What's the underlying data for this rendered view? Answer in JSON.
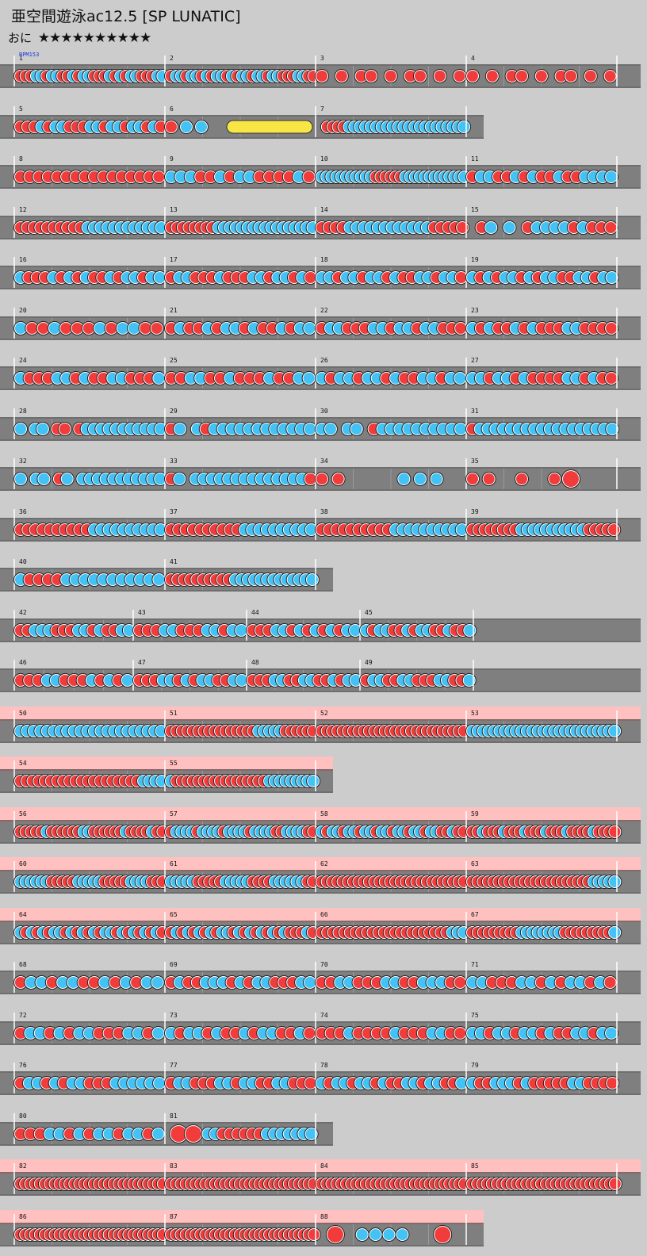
{
  "title": "亜空間遊泳ac12.5 [SP LUNATIC]",
  "difficulty_label": "おに",
  "stars": "★★★★★★★★★★",
  "bpm_label": "BPM153",
  "colors": {
    "background": "#cccccc",
    "lane": "#7f7f7f",
    "gogo_band": "#ffc0c0",
    "don": "#f23c3c",
    "ka": "#42c2f5",
    "drumroll": "#f8e645"
  },
  "rows": [
    {
      "gogo": false,
      "measures": [
        {
          "num": "1",
          "pattern": "dddkkdkkddkdkkdddkdkdkkdddkk"
        },
        {
          "num": "2",
          "pattern": "dkkdkkdkdkkdkdkkdkkdkkdddkkdd"
        },
        {
          "num": "3",
          "pattern": "d-d-dd-d-dd-d-d"
        },
        {
          "num": "4",
          "pattern": "d-d-dd-d-dd-d-d"
        }
      ]
    },
    {
      "gogo": false,
      "measures": [
        {
          "num": "5",
          "pattern": "dddkdkkdddkkdkkdkkdkd"
        },
        {
          "num": "6",
          "pattern": "dkk-ROLL"
        },
        {
          "num": "7",
          "pattern": "-ddddkkkkkkkkkkkkkkkkkkkkkk"
        }
      ]
    },
    {
      "gogo": false,
      "measures": [
        {
          "num": "8",
          "pattern": "dddddddddddddddd"
        },
        {
          "num": "9",
          "pattern": "kkkddkdkkddddkd"
        },
        {
          "num": "10",
          "pattern": "kkkkkkkkkkkddddddkkkkkkkkkkkkk"
        },
        {
          "num": "11",
          "pattern": "dkkddkdkddkddkkkk"
        }
      ]
    },
    {
      "gogo": false,
      "measures": [
        {
          "num": "12",
          "pattern": "ddddddddddkkkkkkkkkkkk"
        },
        {
          "num": "13",
          "pattern": "ddddddddkkkkkkkkkkkkkkkkk"
        },
        {
          "num": "14",
          "pattern": "ddddkkkkkkkkkkkkddddd"
        },
        {
          "num": "15",
          "pattern": "-dk-k-dkkkkdkddd"
        }
      ]
    },
    {
      "gogo": false,
      "measures": [
        {
          "num": "16",
          "pattern": "kdddkdkdkddkdkkdkk"
        },
        {
          "num": "17",
          "pattern": "dkkdddkdddkkdkkdkd"
        },
        {
          "num": "18",
          "pattern": "kkdkkdkkdkddkkdkkd"
        },
        {
          "num": "19",
          "pattern": "kdkdkkdkdkkddkkdkk"
        }
      ]
    },
    {
      "gogo": false,
      "measures": [
        {
          "num": "20",
          "pattern": "kddkdddkdkkdd"
        },
        {
          "num": "21",
          "pattern": "dkddkdkkdkddkdkk"
        },
        {
          "num": "22",
          "pattern": "dkkdddkkdkkdkkddd"
        },
        {
          "num": "23",
          "pattern": "kdkddkdkdddkkdddd"
        }
      ]
    },
    {
      "gogo": false,
      "measures": [
        {
          "num": "24",
          "pattern": "kdddkkdkddkkdddk"
        },
        {
          "num": "25",
          "pattern": "ddkkddkdddkddkk"
        },
        {
          "num": "26",
          "pattern": "kdkkdkkdkddkkdkk"
        },
        {
          "num": "27",
          "pattern": "kkdkkdkddddkkdkdd"
        }
      ]
    },
    {
      "gogo": false,
      "measures": [
        {
          "num": "28",
          "pattern": "k-kk-dd-dkkkkkkkkkkk"
        },
        {
          "num": "29",
          "pattern": "dk-kdkkkkkkkkkkkk"
        },
        {
          "num": "30",
          "pattern": "kk-kk-dkkkkkkkkkk"
        },
        {
          "num": "31",
          "pattern": "dkkkkkkkkkkkkkkkkkk"
        }
      ]
    },
    {
      "gogo": false,
      "measures": [
        {
          "num": "32",
          "pattern": "k-kk-dk-kkkkkkkkkkk"
        },
        {
          "num": "33",
          "pattern": "dk-kkkkkkkkkkkkkkd"
        },
        {
          "num": "34",
          "pattern": "dd---kkk-"
        },
        {
          "num": "35",
          "pattern": "dd-d-dD--"
        }
      ]
    },
    {
      "gogo": false,
      "measures": [
        {
          "num": "36",
          "pattern": "ddddddddddkkkkkkkkkk"
        },
        {
          "num": "37",
          "pattern": "ddddddddddkkkkkkkkkk"
        },
        {
          "num": "38",
          "pattern": "ddddddddddkkkkkkkkkk"
        },
        {
          "num": "39",
          "pattern": "ddddddddkkkkkkkkkkkddddd"
        }
      ]
    },
    {
      "gogo": false,
      "measures": [
        {
          "num": "40",
          "pattern": "kddddkkkkkkkkkkk"
        },
        {
          "num": "41",
          "pattern": "ddddddddddkkkkkkkkkkkkk"
        }
      ]
    },
    {
      "gogo": false,
      "measures": [
        {
          "num": "42",
          "pattern": "ddkkkdddkkdkddkk"
        },
        {
          "num": "43",
          "pattern": "dddkkdddkkdkk"
        },
        {
          "num": "44",
          "pattern": "dddkkdkdkdkdkk"
        },
        {
          "num": "45",
          "pattern": "kdkkddkdkkddkddk"
        }
      ]
    },
    {
      "gogo": false,
      "measures": [
        {
          "num": "46",
          "pattern": "dddkkdddkdkdk"
        },
        {
          "num": "47",
          "pattern": "dddkkdkdkkddkk"
        },
        {
          "num": "48",
          "pattern": "dddkkddkkddkdkk"
        },
        {
          "num": "49",
          "pattern": "dkkddkkdddkkddk"
        }
      ]
    },
    {
      "gogo": true,
      "measures": [
        {
          "num": "50",
          "pattern": "kkkkkkkkkkkkkkkkkkkkkk"
        },
        {
          "num": "51",
          "pattern": "ddddddddddddddddkkkkkdddddd"
        },
        {
          "num": "52",
          "pattern": "dddddddddddddddddddddddddddd"
        },
        {
          "num": "53",
          "pattern": "kkkkkkkkkkkkkkkkkkkkkkkkkkk"
        }
      ]
    },
    {
      "gogo": true,
      "measures": [
        {
          "num": "54",
          "pattern": "ddddddddddddddddddddkkkk"
        },
        {
          "num": "55",
          "pattern": "kdddddddddddddddddkkkkkkkkk"
        }
      ]
    },
    {
      "gogo": true,
      "measures": [
        {
          "num": "56",
          "pattern": "dddddkddddddkkddddddkddddkdd"
        },
        {
          "num": "57",
          "pattern": "dkkkkdkkkkdkkkkdkkkkddkkkkdd"
        },
        {
          "num": "58",
          "pattern": "kdkkdkkdkkdkkdkkdkkdkkddkdd"
        },
        {
          "num": "59",
          "pattern": "ddkdddkdddkdddkdddkddddkdddd"
        }
      ]
    },
    {
      "gogo": true,
      "measures": [
        {
          "num": "60",
          "pattern": "kkkkkkdddddkkkkkdddddkkkkddd"
        },
        {
          "num": "61",
          "pattern": "kkkkkdddddkkkkkddddkkkkkkdd"
        },
        {
          "num": "62",
          "pattern": "dddddddddddddddddddddddddddd"
        },
        {
          "num": "63",
          "pattern": "dddddddddddddddddddddddkkkkk"
        }
      ]
    },
    {
      "gogo": true,
      "measures": [
        {
          "num": "64",
          "pattern": "kdkdkdkkdkdkdkdkkdkdkdkdkd"
        },
        {
          "num": "65",
          "pattern": "dkdkdkdkdkkdkdkdkdkdkdddkd"
        },
        {
          "num": "66",
          "pattern": "dddddddddddddddddddddddkkk"
        },
        {
          "num": "67",
          "pattern": "dddddddddkkkkkkkkdddddddddk"
        }
      ]
    },
    {
      "gogo": false,
      "measures": [
        {
          "num": "68",
          "pattern": "dkkdkkddkdkdkk"
        },
        {
          "num": "69",
          "pattern": "dkddkkkdkdkkdddkk"
        },
        {
          "num": "70",
          "pattern": "ddkkdddkkddkkkdd"
        },
        {
          "num": "71",
          "pattern": "kkdddkkdkdkkdkd"
        }
      ]
    },
    {
      "gogo": false,
      "measures": [
        {
          "num": "72",
          "pattern": "dkkdkdkkdddkkdk"
        },
        {
          "num": "73",
          "pattern": "kdkkdkddkdkkddkd"
        },
        {
          "num": "74",
          "pattern": "dddkddddkdddkkdd"
        },
        {
          "num": "75",
          "pattern": "kkdkkdkkdkddkkdkk"
        }
      ]
    },
    {
      "gogo": false,
      "measures": [
        {
          "num": "76",
          "pattern": "dkkdkdkkdddkkkkkk"
        },
        {
          "num": "77",
          "pattern": "dkkdddkkdkkddkkddd"
        },
        {
          "num": "78",
          "pattern": "kdkkdkkdkddkkdkkddk"
        },
        {
          "num": "79",
          "pattern": "kddkkkdkdddddkkdddd"
        }
      ]
    },
    {
      "gogo": false,
      "measures": [
        {
          "num": "80",
          "pattern": "dddkkdkdkkdkkdk"
        },
        {
          "num": "81",
          "pattern": "-D-D-kkddddddkkkkkkk"
        }
      ]
    },
    {
      "gogo": true,
      "measures": [
        {
          "num": "82",
          "pattern": "dddddddddddddddddddddddddddddd"
        },
        {
          "num": "83",
          "pattern": "dddddddddddddddddddddddddddddd"
        },
        {
          "num": "84",
          "pattern": "dddddddddddddddddddddddddddddd"
        },
        {
          "num": "85",
          "pattern": "dddddddddddddddddddddddddddddd"
        }
      ]
    },
    {
      "gogo": true,
      "measures": [
        {
          "num": "86",
          "pattern": "dddddddddddddddddddddddddddddd"
        },
        {
          "num": "87",
          "pattern": "dddddddddddddddddddddddddddddd"
        },
        {
          "num": "88",
          "pattern": "-D-kkkk--D-"
        }
      ]
    }
  ]
}
